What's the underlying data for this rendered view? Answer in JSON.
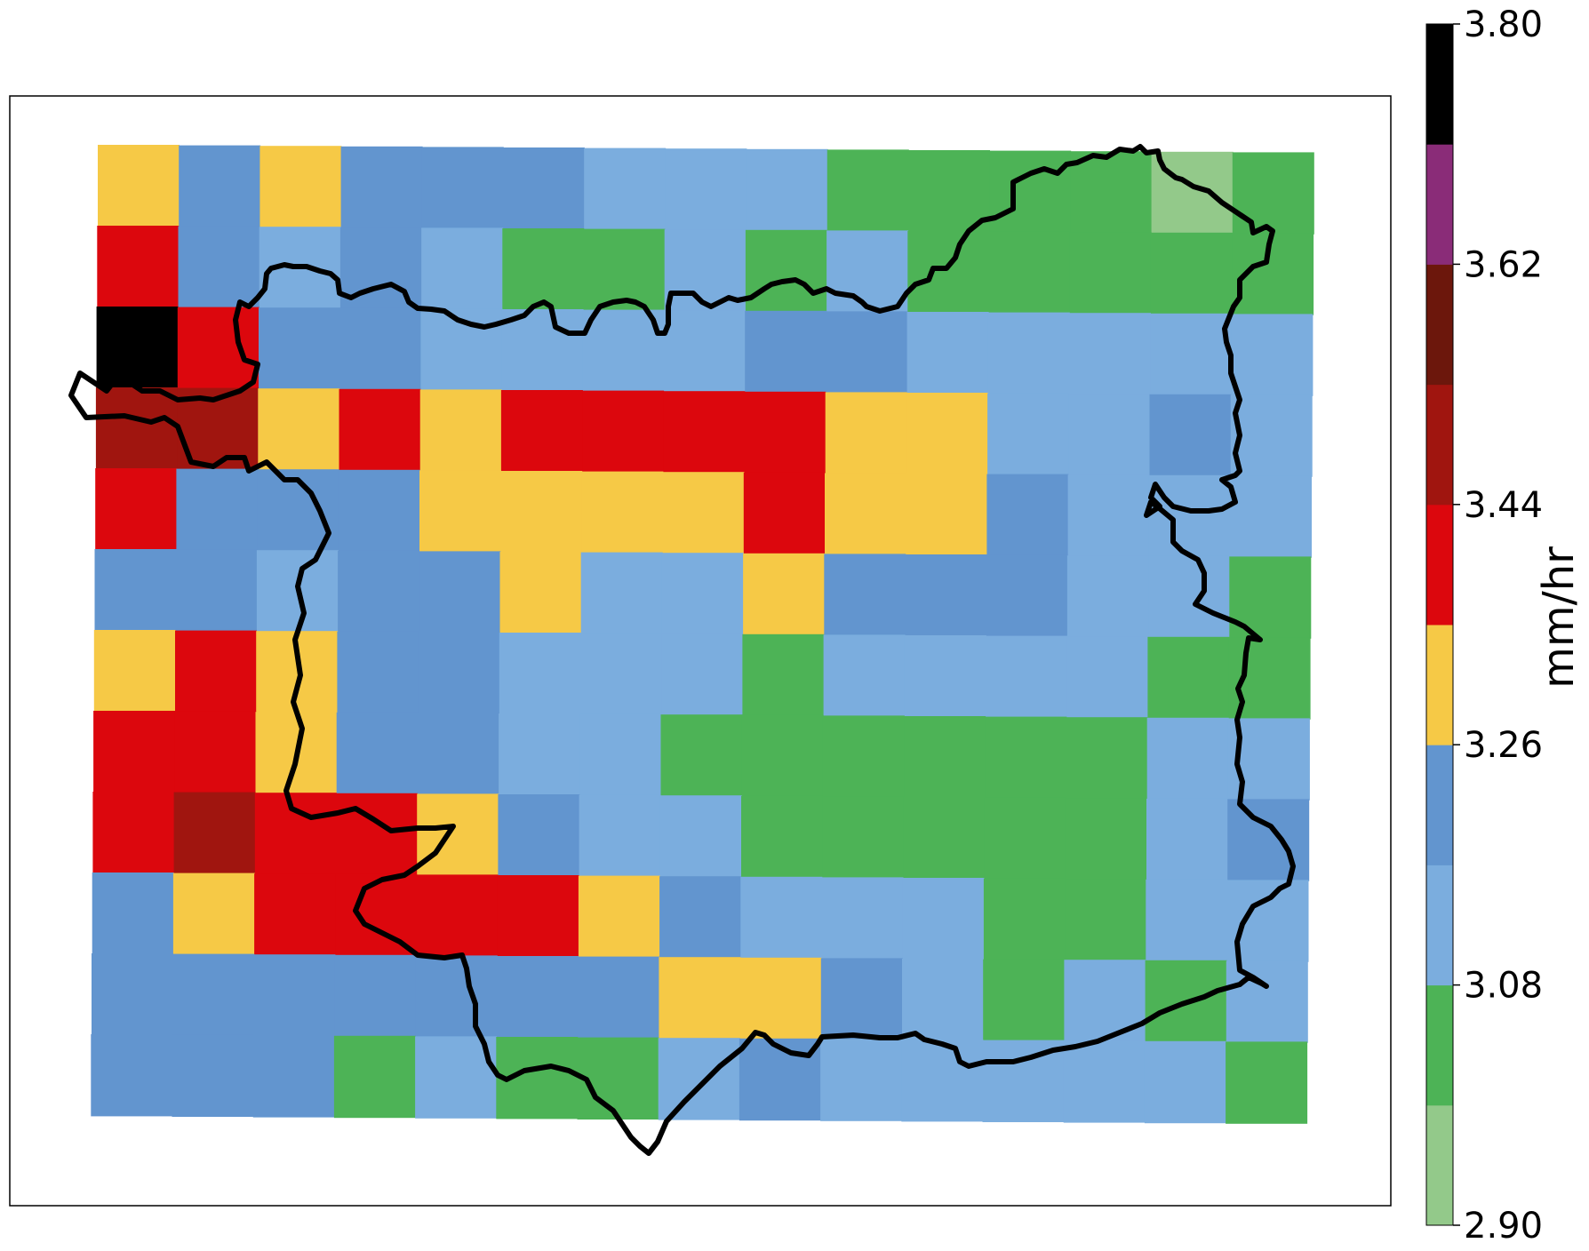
{
  "chart_data": {
    "type": "heatmap",
    "title": "",
    "colorbar": {
      "label": "mm/hr",
      "min": 2.9,
      "max": 3.8,
      "ticks": [
        "2.90",
        "3.08",
        "3.26",
        "3.44",
        "3.62",
        "3.80"
      ],
      "bins": [
        {
          "from": 2.9,
          "to": 2.99,
          "color": "#93c98a"
        },
        {
          "from": 2.99,
          "to": 3.08,
          "color": "#4db356"
        },
        {
          "from": 3.08,
          "to": 3.17,
          "color": "#7badde"
        },
        {
          "from": 3.17,
          "to": 3.26,
          "color": "#6295cf"
        },
        {
          "from": 3.26,
          "to": 3.35,
          "color": "#f6c946"
        },
        {
          "from": 3.35,
          "to": 3.44,
          "color": "#dc070d"
        },
        {
          "from": 3.44,
          "to": 3.53,
          "color": "#a0150f"
        },
        {
          "from": 3.53,
          "to": 3.62,
          "color": "#6c170c"
        },
        {
          "from": 3.62,
          "to": 3.71,
          "color": "#8a2c78"
        },
        {
          "from": 3.71,
          "to": 3.8,
          "color": "#000000"
        }
      ]
    },
    "grid_rows": 12,
    "grid_cols": 15,
    "cells": [
      [
        3.3,
        3.22,
        3.3,
        3.22,
        3.22,
        3.22,
        3.12,
        3.12,
        3.12,
        3.04,
        3.04,
        3.04,
        3.04,
        2.94,
        3.04
      ],
      [
        3.4,
        3.22,
        3.12,
        3.22,
        3.12,
        3.04,
        3.04,
        3.12,
        3.04,
        3.12,
        3.04,
        3.04,
        3.04,
        3.04,
        3.04
      ],
      [
        3.76,
        3.4,
        3.22,
        3.22,
        3.12,
        3.12,
        3.12,
        3.12,
        3.22,
        3.22,
        3.12,
        3.12,
        3.12,
        3.12,
        3.12
      ],
      [
        3.48,
        3.48,
        3.3,
        3.4,
        3.3,
        3.4,
        3.4,
        3.4,
        3.4,
        3.3,
        3.3,
        3.12,
        3.12,
        3.22,
        3.12
      ],
      [
        3.4,
        3.22,
        3.22,
        3.22,
        3.3,
        3.3,
        3.3,
        3.3,
        3.4,
        3.3,
        3.3,
        3.22,
        3.12,
        3.12,
        3.12
      ],
      [
        3.22,
        3.22,
        3.12,
        3.22,
        3.22,
        3.3,
        3.12,
        3.12,
        3.3,
        3.22,
        3.22,
        3.22,
        3.12,
        3.12,
        3.04
      ],
      [
        3.3,
        3.4,
        3.3,
        3.22,
        3.22,
        3.12,
        3.12,
        3.12,
        3.04,
        3.12,
        3.12,
        3.12,
        3.12,
        3.04,
        3.04
      ],
      [
        3.4,
        3.4,
        3.3,
        3.22,
        3.22,
        3.12,
        3.12,
        3.04,
        3.04,
        3.04,
        3.04,
        3.04,
        3.04,
        3.12,
        3.12
      ],
      [
        3.4,
        3.48,
        3.4,
        3.4,
        3.3,
        3.22,
        3.12,
        3.12,
        3.04,
        3.04,
        3.04,
        3.04,
        3.04,
        3.12,
        3.22
      ],
      [
        3.22,
        3.3,
        3.4,
        3.4,
        3.4,
        3.4,
        3.3,
        3.22,
        3.12,
        3.12,
        3.12,
        3.04,
        3.04,
        3.12,
        3.12
      ],
      [
        3.22,
        3.22,
        3.22,
        3.22,
        3.22,
        3.22,
        3.22,
        3.3,
        3.3,
        3.22,
        3.12,
        3.04,
        3.12,
        3.04,
        3.12
      ],
      [
        3.22,
        3.22,
        3.22,
        3.04,
        3.12,
        3.04,
        3.04,
        3.12,
        3.22,
        3.12,
        3.12,
        3.12,
        3.12,
        3.12,
        3.04
      ]
    ],
    "legend": "colorbar-right",
    "grid": false
  }
}
